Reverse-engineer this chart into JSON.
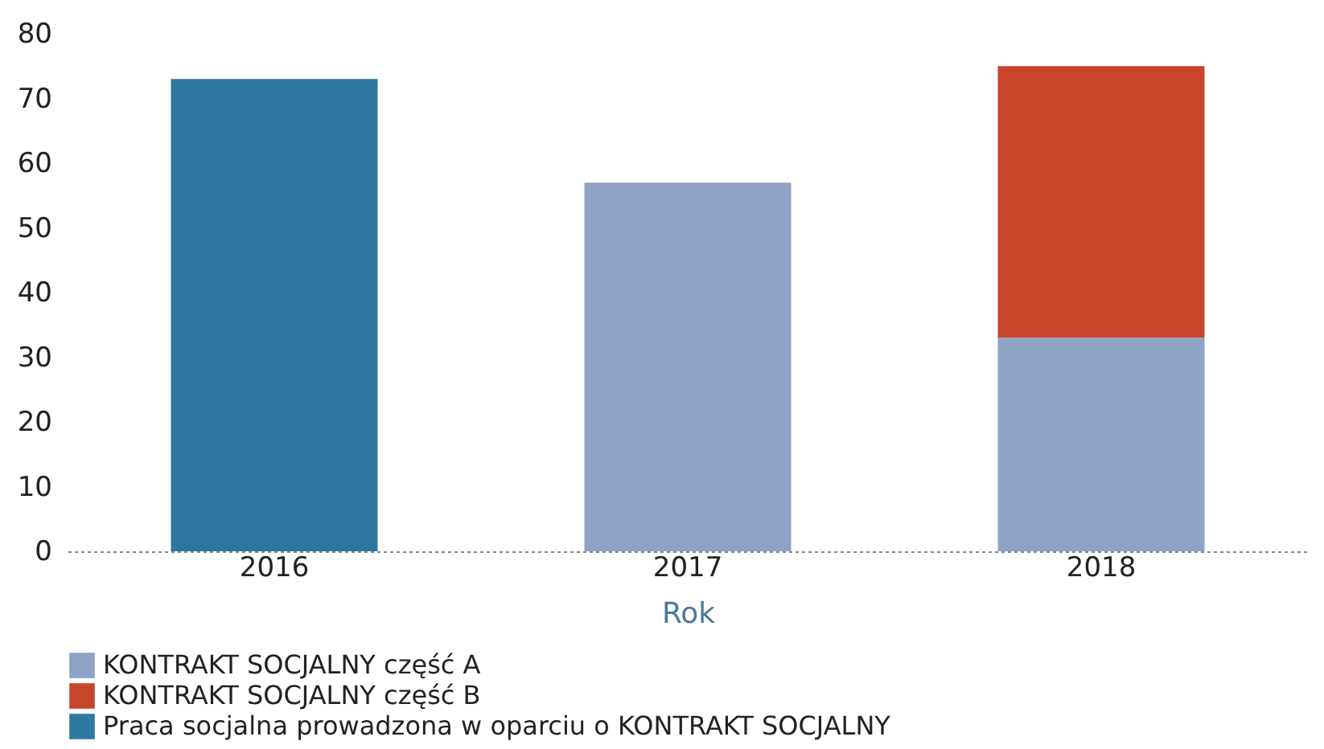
{
  "chart_data": {
    "type": "bar",
    "stacked": true,
    "xlabel": "Rok",
    "categories": [
      "2016",
      "2017",
      "2018"
    ],
    "series": [
      {
        "name": "KONTRAKT SOCJALNY część A",
        "color": "#8ea3c6",
        "values": [
          null,
          57,
          33
        ]
      },
      {
        "name": "KONTRAKT SOCJALNY część B",
        "color": "#c8452c",
        "values": [
          null,
          null,
          42
        ]
      },
      {
        "name": "Praca socjalna prowadzona w oparciu o KONTRAKT SOCJALNY",
        "color": "#2c78a0",
        "values": [
          73,
          null,
          null
        ]
      }
    ],
    "ylim": [
      0,
      80
    ],
    "yticks": [
      0,
      10,
      20,
      30,
      40,
      50,
      60,
      70,
      80
    ],
    "grid": false,
    "legend": "bottom"
  }
}
